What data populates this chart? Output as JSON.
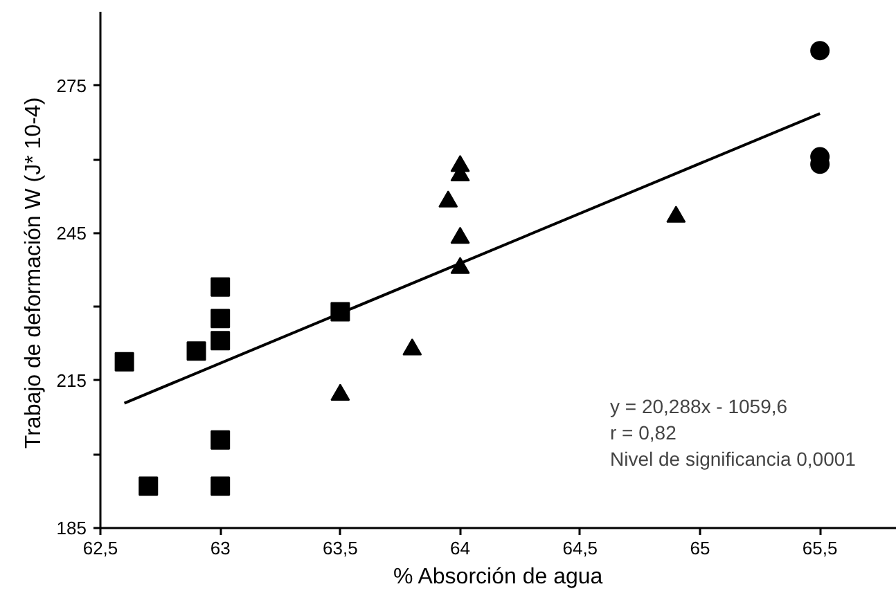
{
  "chart_data": {
    "type": "scatter",
    "xlabel": "% Absorción de agua",
    "ylabel": "Trabajo de deformación  W (J* 10-4)",
    "xlim": [
      62.5,
      65.82
    ],
    "ylim": [
      185,
      290
    ],
    "xticks": [
      {
        "value": 62.5,
        "label": "62,5"
      },
      63,
      {
        "value": 63.5,
        "label": "63,5"
      },
      64,
      {
        "value": 64.5,
        "label": "64,5"
      },
      65,
      {
        "value": 65.5,
        "label": "65,5"
      }
    ],
    "yticks": [
      185,
      {
        "value": 200,
        "label": null
      },
      215,
      {
        "value": 230,
        "label": null
      },
      245,
      {
        "value": 260,
        "label": null
      },
      275
    ],
    "grid": false,
    "series": [
      {
        "color": "#000000",
        "marker": "square",
        "x": [
          62.6,
          62.7,
          62.9,
          63.0,
          63.0,
          63.0,
          63.0,
          63.0,
          63.5
        ],
        "values": [
          218.8,
          193.5,
          221.0,
          234.0,
          227.6,
          223.1,
          202.9,
          193.5,
          229.0
        ]
      },
      {
        "color": "#000000",
        "marker": "triangle",
        "x": [
          63.5,
          63.8,
          63.95,
          64.0,
          64.0,
          64.0,
          64.0,
          64.9
        ],
        "values": [
          212.1,
          221.3,
          251.4,
          258.6,
          256.7,
          244.0,
          237.9,
          248.3
        ]
      },
      {
        "color": "#000000",
        "marker": "circle",
        "x": [
          65.5,
          65.5,
          65.5
        ],
        "values": [
          282.1,
          260.5,
          259.0
        ]
      },
      {
        "type": "line",
        "color": "#000000",
        "line_style": "solid",
        "marker": "none",
        "x": [
          62.6,
          65.5
        ],
        "values": [
          210.4,
          269.3
        ]
      }
    ],
    "annotations": [
      "y = 20,288x - 1059,6",
      "r = 0,82",
      "Nivel de significancia 0,0001"
    ]
  }
}
